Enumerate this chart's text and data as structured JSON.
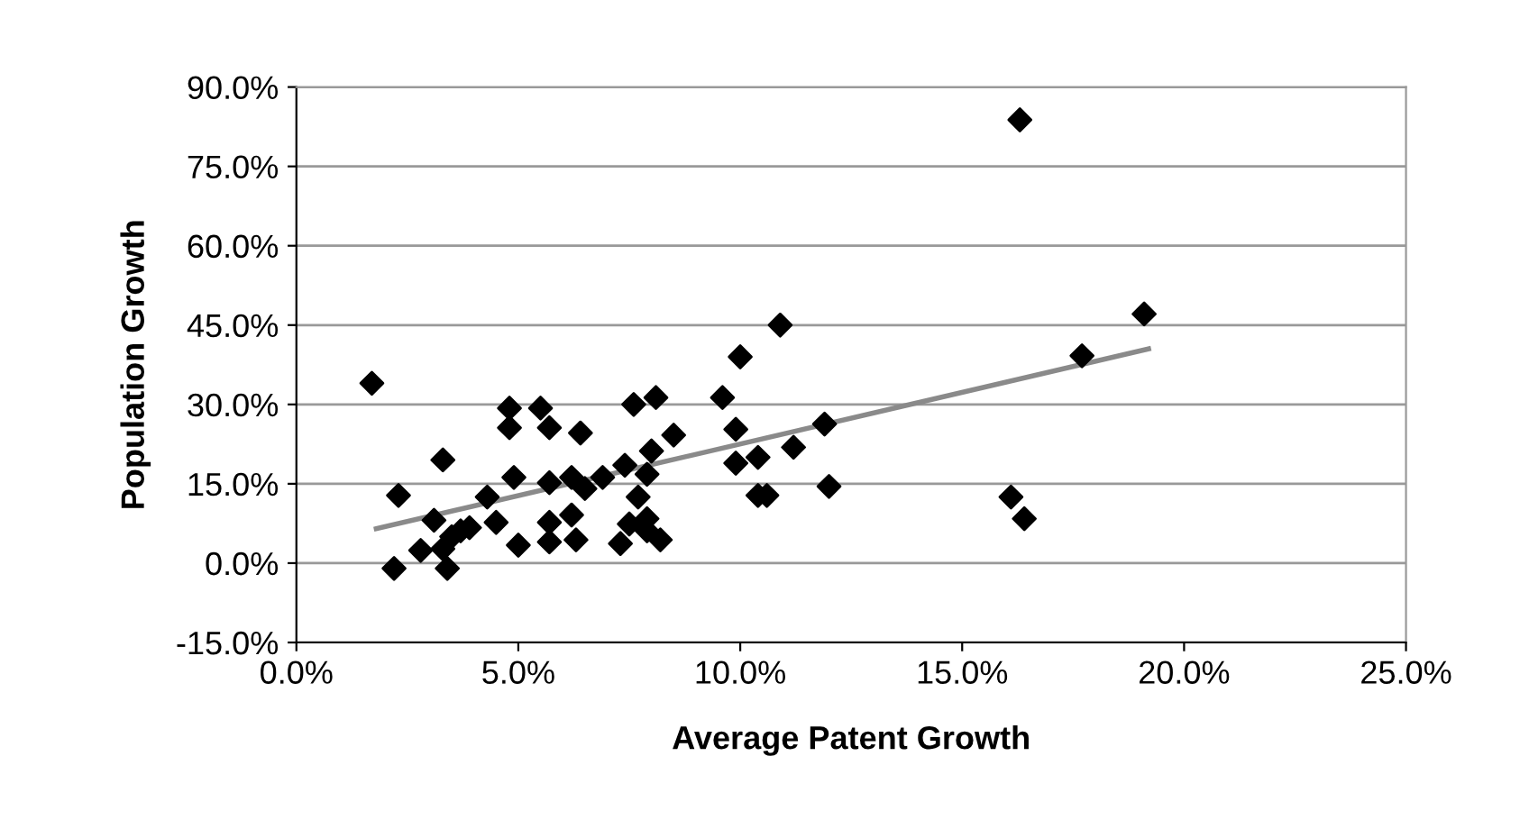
{
  "chart_data": {
    "type": "scatter",
    "xlabel": "Average Patent Growth",
    "ylabel": "Population Growth",
    "xlim": [
      0,
      25
    ],
    "ylim": [
      -15,
      90
    ],
    "xticks": [
      {
        "value": 0,
        "label": "0.0%"
      },
      {
        "value": 5,
        "label": "5.0%"
      },
      {
        "value": 10,
        "label": "10.0%"
      },
      {
        "value": 15,
        "label": "15.0%"
      },
      {
        "value": 20,
        "label": "20.0%"
      },
      {
        "value": 25,
        "label": "25.0%"
      }
    ],
    "yticks": [
      {
        "value": -15,
        "label": "-15.0%"
      },
      {
        "value": 0,
        "label": "0.0%"
      },
      {
        "value": 15,
        "label": "15.0%"
      },
      {
        "value": 30,
        "label": "30.0%"
      },
      {
        "value": 45,
        "label": "45.0%"
      },
      {
        "value": 60,
        "label": "60.0%"
      },
      {
        "value": 75,
        "label": "75.0%"
      },
      {
        "value": 90,
        "label": "90.0%"
      }
    ],
    "grid": "y",
    "marker": "diamond",
    "legend": false,
    "series": [
      {
        "color": "#000000",
        "x": [
          1.7,
          2.3,
          2.2,
          2.8,
          3.3,
          3.1,
          3.3,
          3.4,
          3.5,
          3.7,
          3.9,
          4.3,
          4.5,
          4.8,
          4.8,
          4.9,
          5.0,
          5.5,
          5.7,
          6.4,
          5.7,
          5.7,
          5.7,
          6.2,
          6.5,
          6.2,
          6.3,
          6.9,
          7.3,
          7.4,
          7.6,
          7.7,
          7.5,
          7.9,
          8.1,
          7.9,
          8.0,
          8.5,
          7.9,
          8.2,
          9.6,
          10.0,
          10.9,
          9.9,
          10.4,
          9.9,
          11.2,
          11.9,
          10.4,
          10.6,
          12.0,
          16.3,
          19.1,
          17.7,
          16.1,
          16.4
        ],
        "values": [
          34.0,
          12.8,
          -1.0,
          2.4,
          19.5,
          8.1,
          2.7,
          -1.0,
          5.0,
          6.1,
          6.7,
          12.5,
          7.7,
          29.3,
          25.6,
          16.2,
          3.4,
          29.3,
          25.6,
          24.6,
          15.2,
          7.7,
          4.0,
          16.2,
          14.1,
          9.1,
          4.4,
          16.2,
          3.7,
          18.5,
          30.0,
          12.5,
          7.4,
          6.1,
          31.3,
          16.8,
          21.2,
          24.2,
          8.4,
          4.4,
          31.3,
          39.0,
          45.0,
          25.3,
          20.0,
          18.9,
          21.9,
          26.3,
          12.8,
          12.8,
          14.5,
          83.8,
          47.1,
          39.2,
          12.5,
          8.4
        ]
      },
      {
        "type": "line",
        "color": "#8a8a8a",
        "marker": "none",
        "x": [
          1.8,
          19.2
        ],
        "values": [
          6.5,
          40.5
        ]
      }
    ]
  }
}
